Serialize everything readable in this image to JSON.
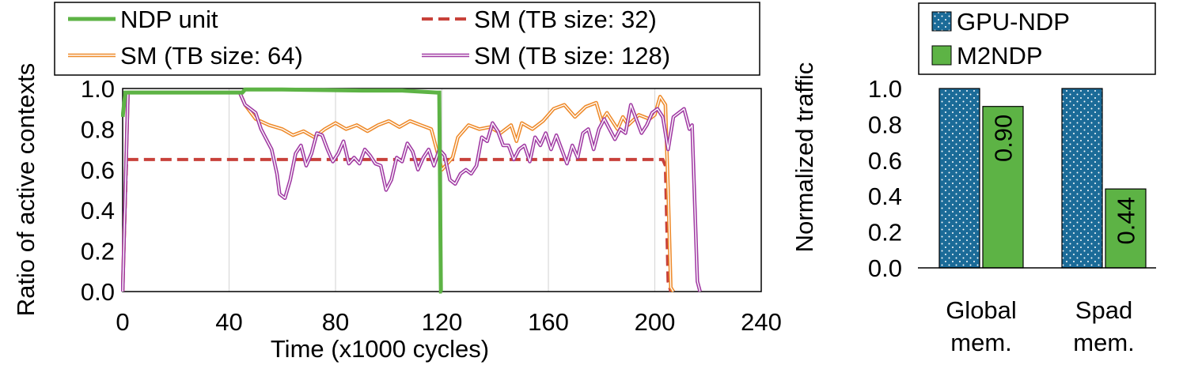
{
  "chart_data": [
    {
      "type": "line",
      "xlabel": "Time (x1000 cycles)",
      "ylabel": "Ratio of active contexts",
      "xlim": [
        0,
        240
      ],
      "ylim": [
        0,
        1.0
      ],
      "xticks": [
        "0",
        "40",
        "80",
        "120",
        "160",
        "200",
        "240"
      ],
      "yticks": [
        "0.0",
        "0.2",
        "0.4",
        "0.6",
        "0.8",
        "1.0"
      ],
      "grid": "vertical",
      "legend_position": "top",
      "series": [
        {
          "name": "NDP unit",
          "style": "solid",
          "color": "#5db345",
          "points": [
            [
              0,
              0.86
            ],
            [
              1,
              0.98
            ],
            [
              45,
              0.98
            ],
            [
              46,
              0.995
            ],
            [
              60,
              0.995
            ],
            [
              90,
              0.99
            ],
            [
              105,
              0.99
            ],
            [
              118,
              0.98
            ],
            [
              119,
              0.98
            ],
            [
              119.6,
              0.0
            ],
            [
              120,
              0.0
            ]
          ]
        },
        {
          "name": "SM (TB size: 32)",
          "style": "dashed",
          "color": "#c8413a",
          "points": [
            [
              0,
              0.0
            ],
            [
              1.5,
              0.65
            ],
            [
              203,
              0.65
            ],
            [
              204,
              0.62
            ],
            [
              205,
              0.05
            ],
            [
              206,
              0.0
            ]
          ]
        },
        {
          "name": "SM (TB size: 64)",
          "style": "double",
          "color": "#ee8a2a",
          "points": [
            [
              0,
              0.0
            ],
            [
              2,
              0.98
            ],
            [
              44,
              0.98
            ],
            [
              46,
              0.92
            ],
            [
              50,
              0.85
            ],
            [
              55,
              0.82
            ],
            [
              60,
              0.8
            ],
            [
              64,
              0.77
            ],
            [
              68,
              0.79
            ],
            [
              72,
              0.76
            ],
            [
              76,
              0.8
            ],
            [
              80,
              0.83
            ],
            [
              84,
              0.8
            ],
            [
              88,
              0.82
            ],
            [
              92,
              0.79
            ],
            [
              96,
              0.82
            ],
            [
              100,
              0.84
            ],
            [
              104,
              0.81
            ],
            [
              108,
              0.84
            ],
            [
              112,
              0.82
            ],
            [
              116,
              0.8
            ],
            [
              118,
              0.7
            ],
            [
              120,
              0.6
            ],
            [
              124,
              0.66
            ],
            [
              126,
              0.76
            ],
            [
              130,
              0.82
            ],
            [
              134,
              0.8
            ],
            [
              138,
              0.81
            ],
            [
              142,
              0.78
            ],
            [
              146,
              0.82
            ],
            [
              148,
              0.74
            ],
            [
              150,
              0.83
            ],
            [
              154,
              0.8
            ],
            [
              158,
              0.84
            ],
            [
              162,
              0.9
            ],
            [
              166,
              0.92
            ],
            [
              170,
              0.86
            ],
            [
              174,
              0.91
            ],
            [
              178,
              0.93
            ],
            [
              180,
              0.84
            ],
            [
              182,
              0.88
            ],
            [
              186,
              0.8
            ],
            [
              188,
              0.86
            ],
            [
              190,
              0.82
            ],
            [
              194,
              0.87
            ],
            [
              198,
              0.85
            ],
            [
              200,
              0.87
            ],
            [
              202,
              0.96
            ],
            [
              204,
              0.92
            ],
            [
              205,
              0.5
            ],
            [
              206,
              0.02
            ],
            [
              207,
              0.0
            ]
          ]
        },
        {
          "name": "SM (TB size: 128)",
          "style": "double",
          "color": "#a03aa3",
          "points": [
            [
              0,
              0.0
            ],
            [
              2,
              0.98
            ],
            [
              44,
              0.98
            ],
            [
              46,
              0.92
            ],
            [
              50,
              0.88
            ],
            [
              52,
              0.8
            ],
            [
              54,
              0.75
            ],
            [
              56,
              0.7
            ],
            [
              58,
              0.58
            ],
            [
              59,
              0.48
            ],
            [
              61,
              0.46
            ],
            [
              63,
              0.55
            ],
            [
              65,
              0.68
            ],
            [
              67,
              0.72
            ],
            [
              69,
              0.62
            ],
            [
              71,
              0.68
            ],
            [
              73,
              0.78
            ],
            [
              75,
              0.77
            ],
            [
              77,
              0.7
            ],
            [
              79,
              0.64
            ],
            [
              81,
              0.68
            ],
            [
              83,
              0.74
            ],
            [
              85,
              0.63
            ],
            [
              87,
              0.66
            ],
            [
              89,
              0.63
            ],
            [
              91,
              0.7
            ],
            [
              93,
              0.67
            ],
            [
              95,
              0.63
            ],
            [
              97,
              0.62
            ],
            [
              99,
              0.5
            ],
            [
              101,
              0.55
            ],
            [
              103,
              0.66
            ],
            [
              105,
              0.64
            ],
            [
              107,
              0.73
            ],
            [
              109,
              0.69
            ],
            [
              111,
              0.6
            ],
            [
              113,
              0.66
            ],
            [
              115,
              0.7
            ],
            [
              117,
              0.62
            ],
            [
              119,
              0.7
            ],
            [
              121,
              0.67
            ],
            [
              123,
              0.55
            ],
            [
              125,
              0.53
            ],
            [
              127,
              0.58
            ],
            [
              129,
              0.6
            ],
            [
              131,
              0.58
            ],
            [
              133,
              0.62
            ],
            [
              135,
              0.76
            ],
            [
              137,
              0.74
            ],
            [
              139,
              0.83
            ],
            [
              141,
              0.79
            ],
            [
              143,
              0.72
            ],
            [
              145,
              0.72
            ],
            [
              147,
              0.65
            ],
            [
              149,
              0.7
            ],
            [
              151,
              0.72
            ],
            [
              153,
              0.64
            ],
            [
              155,
              0.76
            ],
            [
              157,
              0.72
            ],
            [
              159,
              0.78
            ],
            [
              161,
              0.7
            ],
            [
              163,
              0.77
            ],
            [
              165,
              0.7
            ],
            [
              167,
              0.63
            ],
            [
              169,
              0.72
            ],
            [
              171,
              0.66
            ],
            [
              173,
              0.78
            ],
            [
              175,
              0.8
            ],
            [
              177,
              0.7
            ],
            [
              179,
              0.8
            ],
            [
              181,
              0.85
            ],
            [
              183,
              0.8
            ],
            [
              185,
              0.75
            ],
            [
              187,
              0.8
            ],
            [
              189,
              0.78
            ],
            [
              191,
              0.92
            ],
            [
              193,
              0.85
            ],
            [
              195,
              0.78
            ],
            [
              197,
              0.82
            ],
            [
              199,
              0.88
            ],
            [
              201,
              0.9
            ],
            [
              203,
              0.86
            ],
            [
              205,
              0.7
            ],
            [
              207,
              0.86
            ],
            [
              209,
              0.88
            ],
            [
              211,
              0.9
            ],
            [
              213,
              0.8
            ],
            [
              214,
              0.82
            ],
            [
              216,
              0.05
            ],
            [
              217,
              0.0
            ]
          ]
        }
      ]
    },
    {
      "type": "bar",
      "ylabel": "Normalized traffic",
      "ylim": [
        0,
        1.0
      ],
      "yticks": [
        "0.0",
        "0.2",
        "0.4",
        "0.6",
        "0.8",
        "1.0"
      ],
      "categories": [
        "Global\nmem.",
        "Spad\nmem."
      ],
      "category_lines": [
        [
          "Global",
          "mem."
        ],
        [
          "Spad",
          "mem."
        ]
      ],
      "legend_position": "top",
      "series": [
        {
          "name": "GPU-NDP",
          "values": [
            1.0,
            1.0
          ],
          "labels": [
            "",
            ""
          ],
          "color": "#1b6b98",
          "pattern": "dots"
        },
        {
          "name": "M2NDP",
          "values": [
            0.9,
            0.44
          ],
          "labels": [
            "0.90",
            "0.44"
          ],
          "color": "#5db345",
          "pattern": "solid"
        }
      ]
    }
  ]
}
